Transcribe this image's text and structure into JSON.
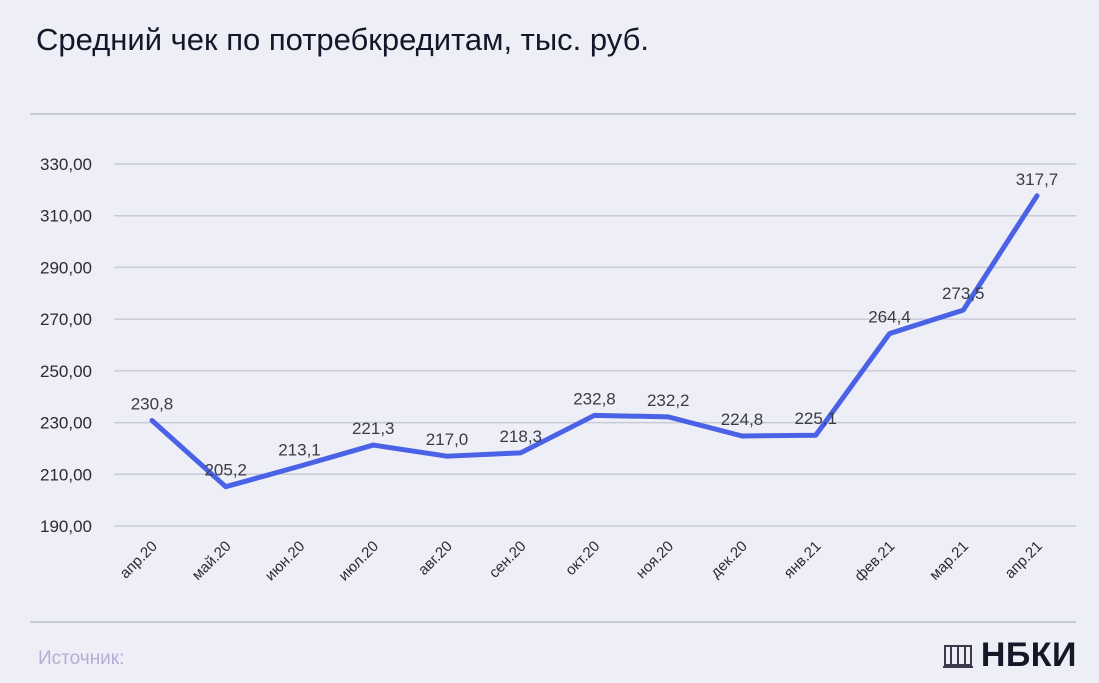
{
  "title": "Средний чек по потребкредитам, тыс. руб.",
  "source_label": "Источник:",
  "brand": "НБКИ",
  "brand_icon": "book-icon",
  "colors": {
    "line": "#4a63e6",
    "grid": "#c9cad8",
    "background": "#eeeef6"
  },
  "chart_data": {
    "type": "line",
    "title": "Средний чек по потребкредитам, тыс. руб.",
    "categories": [
      "апр.20",
      "май.20",
      "июн.20",
      "июл.20",
      "авг.20",
      "сен.20",
      "окт.20",
      "ноя.20",
      "дек.20",
      "янв.21",
      "фев.21",
      "мар.21",
      "апр.21"
    ],
    "series": [
      {
        "values": [
          230.8,
          205.2,
          213.1,
          221.3,
          217.0,
          218.3,
          232.8,
          232.2,
          224.8,
          225.1,
          264.4,
          273.5,
          317.7
        ]
      }
    ],
    "data_labels": [
      "230,8",
      "205,2",
      "213,1",
      "221,3",
      "217,0",
      "218,3",
      "232,8",
      "232,2",
      "224,8",
      "225,1",
      "264,4",
      "273,5",
      "317,7"
    ],
    "y_ticks": [
      190,
      210,
      230,
      250,
      270,
      290,
      310,
      330
    ],
    "y_tick_labels": [
      "190,00",
      "210,00",
      "230,00",
      "250,00",
      "270,00",
      "290,00",
      "310,00",
      "330,00"
    ],
    "ylim": [
      190,
      330
    ],
    "grid": true,
    "legend": "none"
  }
}
